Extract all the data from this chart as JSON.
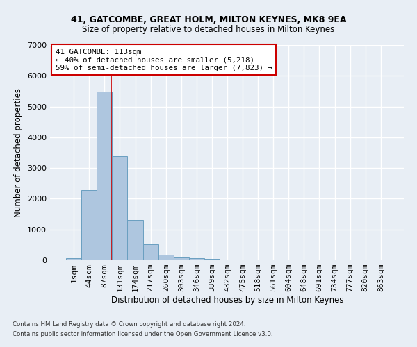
{
  "title_line1": "41, GATCOMBE, GREAT HOLM, MILTON KEYNES, MK8 9EA",
  "title_line2": "Size of property relative to detached houses in Milton Keynes",
  "xlabel": "Distribution of detached houses by size in Milton Keynes",
  "ylabel": "Number of detached properties",
  "footnote1": "Contains HM Land Registry data © Crown copyright and database right 2024.",
  "footnote2": "Contains public sector information licensed under the Open Government Licence v3.0.",
  "bar_labels": [
    "1sqm",
    "44sqm",
    "87sqm",
    "131sqm",
    "174sqm",
    "217sqm",
    "260sqm",
    "303sqm",
    "346sqm",
    "389sqm",
    "432sqm",
    "475sqm",
    "518sqm",
    "561sqm",
    "604sqm",
    "648sqm",
    "691sqm",
    "734sqm",
    "777sqm",
    "820sqm",
    "863sqm"
  ],
  "bar_values": [
    70,
    2280,
    5480,
    3380,
    1310,
    510,
    175,
    100,
    60,
    50,
    0,
    0,
    0,
    0,
    0,
    0,
    0,
    0,
    0,
    0,
    0
  ],
  "bar_color": "#aec6df",
  "bar_edge_color": "#6a9fc0",
  "background_color": "#e8eef5",
  "grid_color": "#ffffff",
  "annotation_text": "41 GATCOMBE: 113sqm\n← 40% of detached houses are smaller (5,218)\n59% of semi-detached houses are larger (7,823) →",
  "vline_x": 2.45,
  "vline_color": "#cc0000",
  "ylim": [
    0,
    7000
  ],
  "yticks": [
    0,
    1000,
    2000,
    3000,
    4000,
    5000,
    6000,
    7000
  ]
}
